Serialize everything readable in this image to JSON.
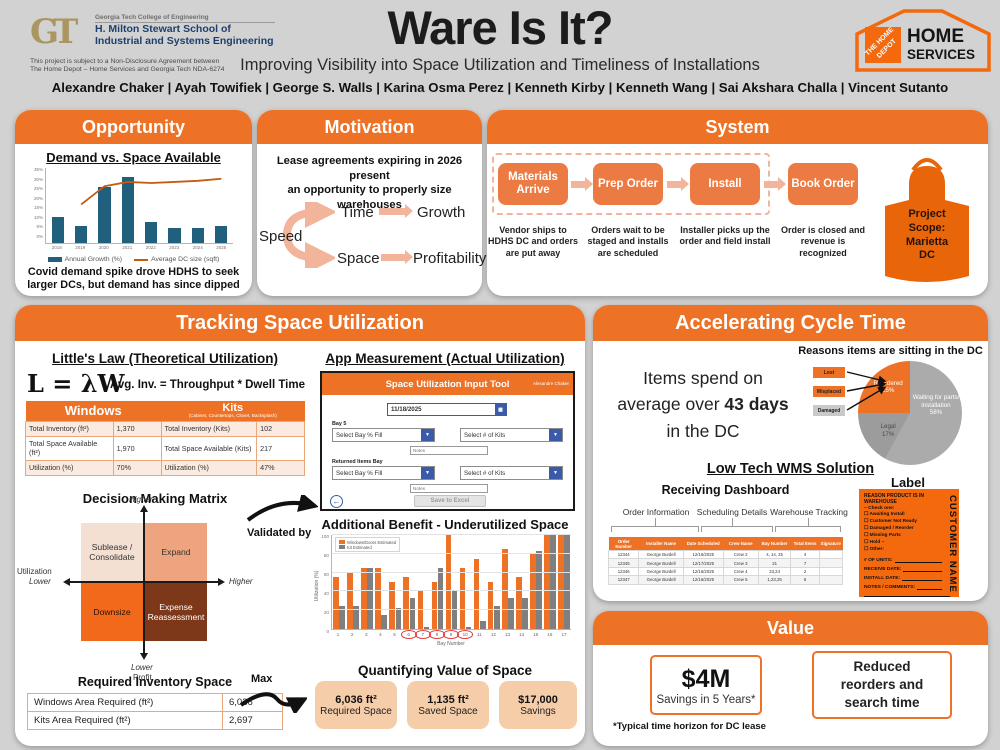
{
  "header": {
    "gt": {
      "logo_text": "GT",
      "college": "Georgia Tech College of Engineering",
      "school_line1": "H. Milton Stewart School of",
      "school_line2": "Industrial and Systems Engineering",
      "nda": "This project is subject to a Non-Disclosure Agreement between\nThe Home Depot – Home Services and Georgia Tech NDA-6274"
    },
    "title": "Ware Is It?",
    "subtitle": "Improving Visibility into Space Utilization and Timeliness of Installations",
    "authors": "Alexandre Chaker | Ayah Towifiek | George S. Walls | Karina Osma Perez | Kenneth Kirby | Kenneth Wang | Sai Akshara Challa | Vincent Sutanto",
    "home_depot": {
      "brand_line1": "THE HOME",
      "brand_line2": "DEPOT",
      "line1": "HOME",
      "line2": "SERVICES"
    }
  },
  "opportunity": {
    "title": "Opportunity",
    "caption": "Covid demand spike drove HDHS to seek\nlarger DCs, but demand has since dipped"
  },
  "motivation": {
    "title": "Motivation",
    "text": "Lease agreements expiring in 2026 present\nan opportunity to properly size warehouses",
    "speed": "Speed",
    "time": "Time",
    "growth": "Growth",
    "space": "Space",
    "profitability": "Profitability"
  },
  "system": {
    "title": "System",
    "steps": [
      {
        "label": "Materials Arrive",
        "caption": "Vendor ships to HDHS DC and orders are put away"
      },
      {
        "label": "Prep Order",
        "caption": "Orders wait to be staged and installs are scheduled"
      },
      {
        "label": "Install",
        "caption": "Installer picks up the order and field install"
      },
      {
        "label": "Book Order",
        "caption": "Order is closed and revenue is recognized"
      }
    ],
    "apron_text": "Project\nScope:\nMarietta\nDC"
  },
  "tracking": {
    "title": "Tracking Space Utilization",
    "littles_heading": "Little's Law (Theoretical Utilization)",
    "formula": "L = λW",
    "formula_text": "Avg. Inv. = Throughput * Dwell Time",
    "littles_table": {
      "windows_header": "Windows",
      "kits_header": "Kits",
      "kits_subheader": "(Cabinet, Countertops, Closet, Backsplash)",
      "rows": [
        [
          "Total Inventory (ft²)",
          "1,370",
          "Total Inventory (Kits)",
          "102"
        ],
        [
          "Total Space Available (ft²)",
          "1,970",
          "Total Space Available (Kits)",
          "217"
        ],
        [
          "Utilization (%)",
          "70%",
          "Utilization (%)",
          "47%"
        ]
      ]
    },
    "matrix": {
      "heading": "Decision Making Matrix",
      "q_tl": "Sublease / Consolidate",
      "q_tr": "Expand",
      "q_bl": "Downsize",
      "q_br": "Expense Reassessment",
      "axis_left_name": "Utilization",
      "axis_left_low": "Lower",
      "axis_right": "Higher",
      "axis_top": "Higher",
      "axis_bottom_low": "Lower",
      "axis_bottom_name": "Profit"
    },
    "validated_by": "Validated by",
    "max_label": "Max",
    "required_heading": "Required Inventory Space",
    "required_rows": [
      [
        "Windows Area Required (ft²)",
        "6,036"
      ],
      [
        "Kits Area Required (ft²)",
        "2,697"
      ]
    ],
    "app": {
      "heading": "App Measurement (Actual Utilization)",
      "toolbar_title": "Space Utilization Input Tool",
      "user": "Alexandre Chaker",
      "date_value": "11/18/2025",
      "bay_label": "Bay 5",
      "returned_label": "Returned Items Bay",
      "dropdown_fill": "Select Bay % Fill",
      "dropdown_kits": "Select # of Kits",
      "notes_placeholder": "Notes",
      "save_button": "Save to Excel"
    },
    "quant_heading": "Quantifying Value of Space",
    "value_cards": [
      {
        "value": "6,036 ft²",
        "label": "Required Space"
      },
      {
        "value": "1,135 ft²",
        "label": "Saved Space"
      },
      {
        "value": "$17,000",
        "label": "Savings"
      }
    ]
  },
  "cycle": {
    "title": "Accelerating Cycle Time",
    "stat_line1": "Items spend on",
    "stat_line2_pre": "average over ",
    "stat_bold": "43 days",
    "stat_line3": "in the DC",
    "wms_heading": "Low Tech WMS Solution",
    "dashboard_heading": "Receiving Dashboard",
    "label_heading": "Label",
    "col_groups": [
      "Order Information",
      "Scheduling Details",
      "Warehouse Tracking"
    ],
    "dashboard": {
      "columns": [
        "Order Number",
        "Installer Name",
        "Date Scheduled",
        "Crew Name",
        "Bay Number",
        "Total Items",
        "Signature"
      ],
      "rows": [
        [
          "12344",
          "George Burdell",
          "12/16/2025",
          "Crew 2",
          "4, 14, 25",
          "4",
          ""
        ],
        [
          "12345",
          "George Burdell",
          "12/17/2025",
          "Crew 3",
          "21",
          "7",
          ""
        ],
        [
          "12346",
          "George Burdell",
          "12/16/2025",
          "Crew 4",
          "23,24",
          "2",
          ""
        ],
        [
          "12347",
          "George Burdell",
          "12/16/2025",
          "Crew 5",
          "1,23,25",
          "6",
          ""
        ]
      ]
    },
    "label_card": {
      "title": "REASON PRODUCT IS IN WAREHOUSE",
      "check_one": "– Check one:",
      "checkboxes": [
        "Awaiting Install",
        "Customer Not Ready",
        "Damaged / Reorder",
        "Missing Parts",
        "Hold –",
        "Other:"
      ],
      "fields": [
        "# OF UNITS:",
        "RECEIVE DATE:",
        "INSTALL DATE:",
        "NOTES / COMMENTS:"
      ],
      "vertical": "CUSTOMER NAME"
    }
  },
  "value": {
    "title": "Value",
    "card1_value": "$4M",
    "card1_label": "Savings in 5 Years*",
    "footnote": "*Typical time horizon for DC lease",
    "card2_text": "Reduced\nreorders and\nsearch time"
  },
  "chart_data": [
    {
      "type": "combo_bar_line",
      "title": "Demand vs. Space Available",
      "categories": [
        "2018",
        "2019",
        "2020",
        "2021",
        "2022",
        "2023",
        "2024",
        "2025"
      ],
      "series": [
        {
          "name": "Annual Growth (%)",
          "type": "bar",
          "color": "#20607C",
          "values": [
            12,
            8,
            26,
            31,
            10,
            7,
            7,
            8
          ]
        },
        {
          "name": "Average DC size (sqft)",
          "type": "line",
          "color": "#C55A11",
          "values_est": [
            null,
            18,
            26.5,
            28.5,
            28,
            28.5,
            29,
            30
          ]
        }
      ],
      "ylim": [
        0,
        35
      ],
      "yticks": [
        0,
        5,
        10,
        15,
        20,
        25,
        30,
        35
      ],
      "legend_position": "bottom"
    },
    {
      "type": "grouped_bar",
      "title": "Additional Benefit - Underutilized Space",
      "xlabel": "Bay Number",
      "ylabel": "Utilization (%)",
      "categories": [
        "1",
        "2",
        "3",
        "4",
        "5",
        "6",
        "7",
        "8",
        "9",
        "10",
        "11",
        "12",
        "13",
        "14",
        "15",
        "16",
        "17"
      ],
      "series": [
        {
          "name": "Windows/Doors Estimated",
          "color": "#ED7226",
          "values": [
            55,
            60,
            65,
            65,
            50,
            55,
            40,
            50,
            100,
            65,
            75,
            50,
            85,
            55,
            80,
            100,
            100
          ]
        },
        {
          "name": "Kit Estimated",
          "color": "#7F7F7F",
          "values": [
            25,
            25,
            65,
            15,
            22,
            33,
            2,
            65,
            42,
            2,
            8,
            25,
            33,
            33,
            83,
            100,
            100
          ]
        }
      ],
      "ylim": [
        0,
        100
      ],
      "yticks": [
        0,
        20,
        40,
        60,
        80,
        100
      ],
      "circled_bays": [
        6,
        7,
        8,
        9,
        10
      ],
      "legend_position": "top-left"
    },
    {
      "type": "pie",
      "title": "Reasons items are sitting in the DC",
      "slices": [
        {
          "label": "Waiting for parts/ installation",
          "value": 58,
          "color": "#ABABAB"
        },
        {
          "label": "Legal",
          "value": 17,
          "color": "#9C9C9C"
        },
        {
          "label": "Reordered",
          "value": 25,
          "color": "#ED7226"
        }
      ],
      "callouts": [
        "Lost",
        "Misplaced",
        "Damaged"
      ]
    }
  ]
}
